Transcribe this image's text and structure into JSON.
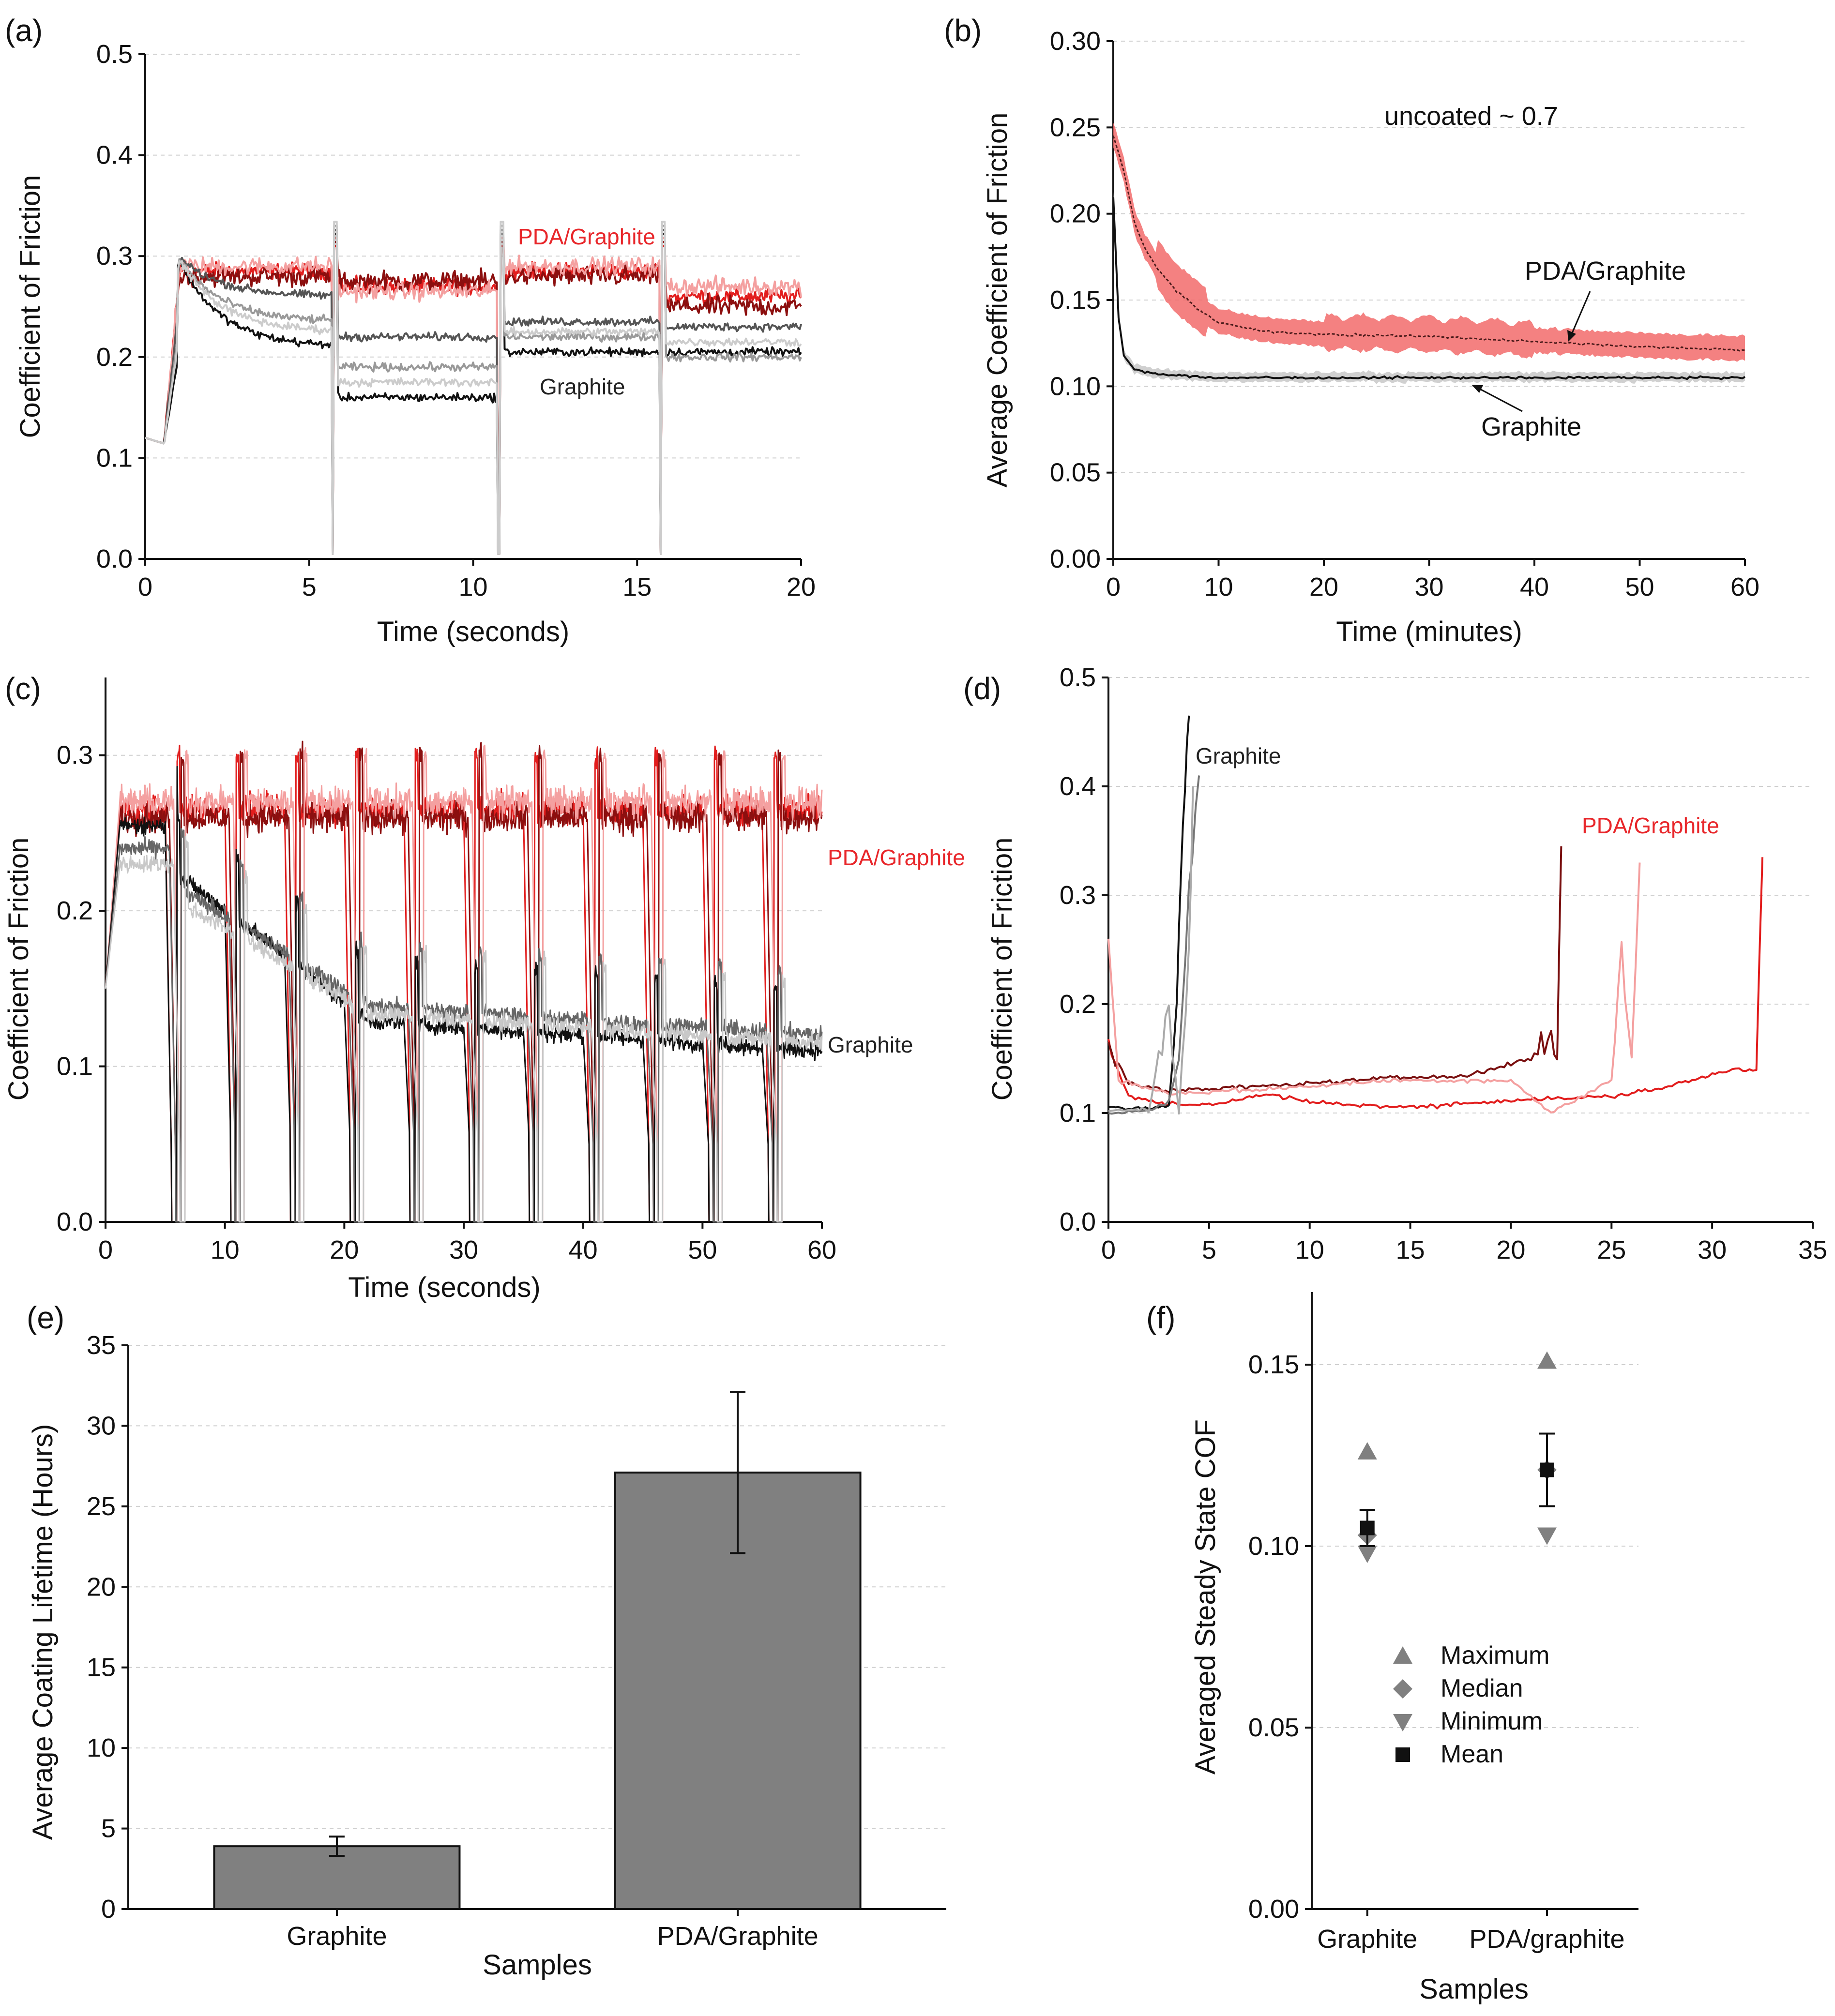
{
  "chart_data": [
    {
      "panel": "(a)",
      "type": "line",
      "xlabel": "Time (seconds)",
      "ylabel": "Coefficient of Friction",
      "xlim": [
        0,
        20
      ],
      "ylim": [
        0,
        0.5
      ],
      "xticks": [
        0,
        5,
        10,
        15,
        20
      ],
      "yticks": [
        0.0,
        0.1,
        0.2,
        0.3,
        0.4,
        0.5
      ],
      "ytick_labels": [
        "0.0",
        "0.1",
        "0.2",
        "0.3",
        "0.4",
        "0.5"
      ],
      "annotations": [
        {
          "text": "PDA/Graphite",
          "color": "#e8262a"
        },
        {
          "text": "Graphite",
          "color": "#222222"
        }
      ],
      "series": [
        {
          "name": "PDA/Graphite 1",
          "color": "#e21d1d",
          "segment_means": [
            0.285,
            0.27,
            0.285,
            0.26
          ],
          "noise": 0.012
        },
        {
          "name": "PDA/Graphite 2",
          "color": "#8c0f0f",
          "segment_means": [
            0.28,
            0.275,
            0.28,
            0.25
          ],
          "noise": 0.015
        },
        {
          "name": "PDA/Graphite 3",
          "color": "#f4a0a0",
          "segment_means": [
            0.29,
            0.265,
            0.29,
            0.27
          ],
          "noise": 0.013
        },
        {
          "name": "Graphite 1",
          "color": "#111111",
          "segment_means": [
            0.21,
            0.16,
            0.205,
            0.205
          ],
          "noise": 0.006
        },
        {
          "name": "Graphite 2",
          "color": "#555555",
          "segment_means": [
            0.26,
            0.22,
            0.235,
            0.23
          ],
          "noise": 0.006
        },
        {
          "name": "Graphite 3",
          "color": "#999999",
          "segment_means": [
            0.235,
            0.19,
            0.22,
            0.2
          ],
          "noise": 0.006
        },
        {
          "name": "Graphite 4",
          "color": "#cccccc",
          "segment_means": [
            0.225,
            0.175,
            0.225,
            0.215
          ],
          "noise": 0.006
        }
      ],
      "cycle_dips_at": [
        5.75,
        10.8,
        15.75
      ]
    },
    {
      "panel": "(b)",
      "type": "area",
      "xlabel": "Time (minutes)",
      "ylabel": "Average Coefficient of Friction",
      "xlim": [
        0,
        60
      ],
      "ylim": [
        0,
        0.3
      ],
      "xticks": [
        0,
        10,
        20,
        30,
        40,
        50,
        60
      ],
      "yticks": [
        0.0,
        0.05,
        0.1,
        0.15,
        0.2,
        0.25,
        0.3
      ],
      "ytick_labels": [
        "0.00",
        "0.05",
        "0.10",
        "0.15",
        "0.20",
        "0.25",
        "0.30"
      ],
      "annotations": [
        {
          "text": "uncoated ~ 0.7"
        },
        {
          "text": "PDA/Graphite"
        },
        {
          "text": "Graphite"
        }
      ],
      "series": [
        {
          "name": "PDA/Graphite",
          "color": "#f26b6b",
          "mean": [
            [
              0,
              0.245
            ],
            [
              1,
              0.225
            ],
            [
              2,
              0.195
            ],
            [
              3,
              0.18
            ],
            [
              4,
              0.17
            ],
            [
              6,
              0.155
            ],
            [
              8,
              0.145
            ],
            [
              10,
              0.137
            ],
            [
              14,
              0.132
            ],
            [
              20,
              0.13
            ],
            [
              30,
              0.129
            ],
            [
              40,
              0.126
            ],
            [
              50,
              0.123
            ],
            [
              60,
              0.121
            ]
          ],
          "band": 0.008
        },
        {
          "name": "Graphite",
          "color": "#333333",
          "mean": [
            [
              0,
              0.21
            ],
            [
              0.5,
              0.14
            ],
            [
              1,
              0.118
            ],
            [
              2,
              0.11
            ],
            [
              4,
              0.107
            ],
            [
              10,
              0.105
            ],
            [
              30,
              0.105
            ],
            [
              60,
              0.105
            ]
          ],
          "band": 0.003
        }
      ]
    },
    {
      "panel": "(c)",
      "type": "line",
      "xlabel": "Time (seconds)",
      "ylabel": "Coefficient of Friction",
      "xlim": [
        0,
        60
      ],
      "ylim": [
        0,
        0.35
      ],
      "xticks": [
        0,
        10,
        20,
        30,
        40,
        50,
        60
      ],
      "yticks": [
        0.0,
        0.1,
        0.2,
        0.3
      ],
      "ytick_labels": [
        "0.0",
        "0.1",
        "0.2",
        "0.3"
      ],
      "annotations": [
        {
          "text": "PDA/Graphite",
          "color": "#e8262a"
        },
        {
          "text": "Graphite",
          "color": "#222222"
        }
      ],
      "cycle_dips_at": [
        5.5,
        10.5,
        15.5,
        20.5,
        25.5,
        30.5,
        35.5,
        40.5,
        45.5,
        50.5,
        55.5
      ],
      "series": [
        {
          "name": "PDA/Graphite 1",
          "color": "#e21d1d",
          "level": 0.265,
          "noise": 0.014
        },
        {
          "name": "PDA/Graphite 2",
          "color": "#8c0f0f",
          "level": 0.26,
          "noise": 0.014
        },
        {
          "name": "PDA/Graphite 3",
          "color": "#f4a0a0",
          "level": 0.27,
          "noise": 0.014
        },
        {
          "name": "Graphite 1",
          "color": "#111111",
          "level_start": 0.255,
          "level_end": 0.11,
          "noise": 0.008
        },
        {
          "name": "Graphite 2",
          "color": "#666666",
          "level_start": 0.24,
          "level_end": 0.12,
          "noise": 0.008
        },
        {
          "name": "Graphite 3",
          "color": "#c8c8c8",
          "level_start": 0.23,
          "level_end": 0.115,
          "noise": 0.008
        }
      ]
    },
    {
      "panel": "(d)",
      "type": "line",
      "xlabel": "",
      "ylabel": "Coefficient of Friction",
      "xlim": [
        0,
        35
      ],
      "ylim": [
        0,
        0.5
      ],
      "xticks": [
        0,
        5,
        10,
        15,
        20,
        25,
        30,
        35
      ],
      "yticks": [
        0.0,
        0.1,
        0.2,
        0.3,
        0.4,
        0.5
      ],
      "ytick_labels": [
        "0.0",
        "0.1",
        "0.2",
        "0.3",
        "0.4",
        "0.5"
      ],
      "annotations": [
        {
          "text": "Graphite",
          "color": "#222222"
        },
        {
          "text": "PDA/Graphite",
          "color": "#e8262a"
        }
      ],
      "series": [
        {
          "name": "PDA/Graphite 1",
          "color": "#e21d1d",
          "points": [
            [
              0,
              0.16
            ],
            [
              1,
              0.115
            ],
            [
              3,
              0.108
            ],
            [
              5,
              0.108
            ],
            [
              8,
              0.117
            ],
            [
              10,
              0.11
            ],
            [
              15,
              0.105
            ],
            [
              20,
              0.112
            ],
            [
              25,
              0.115
            ],
            [
              28,
              0.125
            ],
            [
              31,
              0.14
            ],
            [
              32.2,
              0.14
            ],
            [
              32.5,
              0.335
            ]
          ]
        },
        {
          "name": "PDA/Graphite 2",
          "color": "#7a1010",
          "points": [
            [
              0,
              0.165
            ],
            [
              1,
              0.128
            ],
            [
              3,
              0.12
            ],
            [
              8,
              0.125
            ],
            [
              14,
              0.132
            ],
            [
              18,
              0.135
            ],
            [
              20,
              0.145
            ],
            [
              21,
              0.15
            ],
            [
              22,
              0.17
            ],
            [
              22.3,
              0.15
            ],
            [
              22.5,
              0.345
            ]
          ]
        },
        {
          "name": "PDA/Graphite 3",
          "color": "#f4a0a0",
          "points": [
            [
              0,
              0.26
            ],
            [
              0.5,
              0.13
            ],
            [
              3,
              0.118
            ],
            [
              8,
              0.122
            ],
            [
              14,
              0.13
            ],
            [
              20,
              0.13
            ],
            [
              21,
              0.115
            ],
            [
              22,
              0.1
            ],
            [
              24,
              0.12
            ],
            [
              25,
              0.13
            ],
            [
              25.5,
              0.25
            ],
            [
              26,
              0.15
            ],
            [
              26.4,
              0.33
            ]
          ]
        },
        {
          "name": "Graphite 1",
          "color": "#111111",
          "points": [
            [
              0,
              0.105
            ],
            [
              2,
              0.104
            ],
            [
              3,
              0.108
            ],
            [
              3.4,
              0.2
            ],
            [
              3.6,
              0.32
            ],
            [
              3.8,
              0.4
            ],
            [
              4,
              0.465
            ]
          ]
        },
        {
          "name": "Graphite 2",
          "color": "#777777",
          "points": [
            [
              0,
              0.1
            ],
            [
              2,
              0.102
            ],
            [
              3,
              0.11
            ],
            [
              3.5,
              0.15
            ],
            [
              4,
              0.3
            ],
            [
              4.5,
              0.41
            ]
          ]
        },
        {
          "name": "Graphite 3",
          "color": "#aaaaaa",
          "points": [
            [
              0,
              0.102
            ],
            [
              2,
              0.103
            ],
            [
              3,
              0.2
            ],
            [
              3.5,
              0.1
            ],
            [
              4,
              0.25
            ],
            [
              4.2,
              0.4
            ]
          ]
        }
      ]
    },
    {
      "panel": "(e)",
      "type": "bar",
      "xlabel": "Samples",
      "ylabel": "Average Coating Lifetime (Hours)",
      "categories": [
        "Graphite",
        "PDA/Graphite"
      ],
      "values": [
        3.9,
        27.1
      ],
      "errors": [
        0.6,
        5.0
      ],
      "ylim": [
        0,
        35
      ],
      "yticks": [
        0,
        5,
        10,
        15,
        20,
        25,
        30,
        35
      ],
      "bar_color": "#808080"
    },
    {
      "panel": "(f)",
      "type": "scatter",
      "xlabel": "Samples",
      "ylabel": "Averaged Steady State COF",
      "categories": [
        "Graphite",
        "PDA/graphite"
      ],
      "ylim": [
        0,
        0.17
      ],
      "yticks": [
        0.0,
        0.05,
        0.1,
        0.15
      ],
      "ytick_labels": [
        "0.00",
        "0.05",
        "0.10",
        "0.15"
      ],
      "series": [
        {
          "name": "Maximum",
          "marker": "triangle-up",
          "color": "#808080",
          "values": [
            0.126,
            0.151
          ]
        },
        {
          "name": "Median",
          "marker": "diamond",
          "color": "#808080",
          "values": [
            0.103,
            0.121
          ]
        },
        {
          "name": "Minimum",
          "marker": "triangle-down",
          "color": "#808080",
          "values": [
            0.098,
            0.103
          ]
        },
        {
          "name": "Mean",
          "marker": "square",
          "color": "#111111",
          "values": [
            0.105,
            0.121
          ],
          "errors": [
            0.005,
            0.01
          ]
        }
      ]
    }
  ]
}
